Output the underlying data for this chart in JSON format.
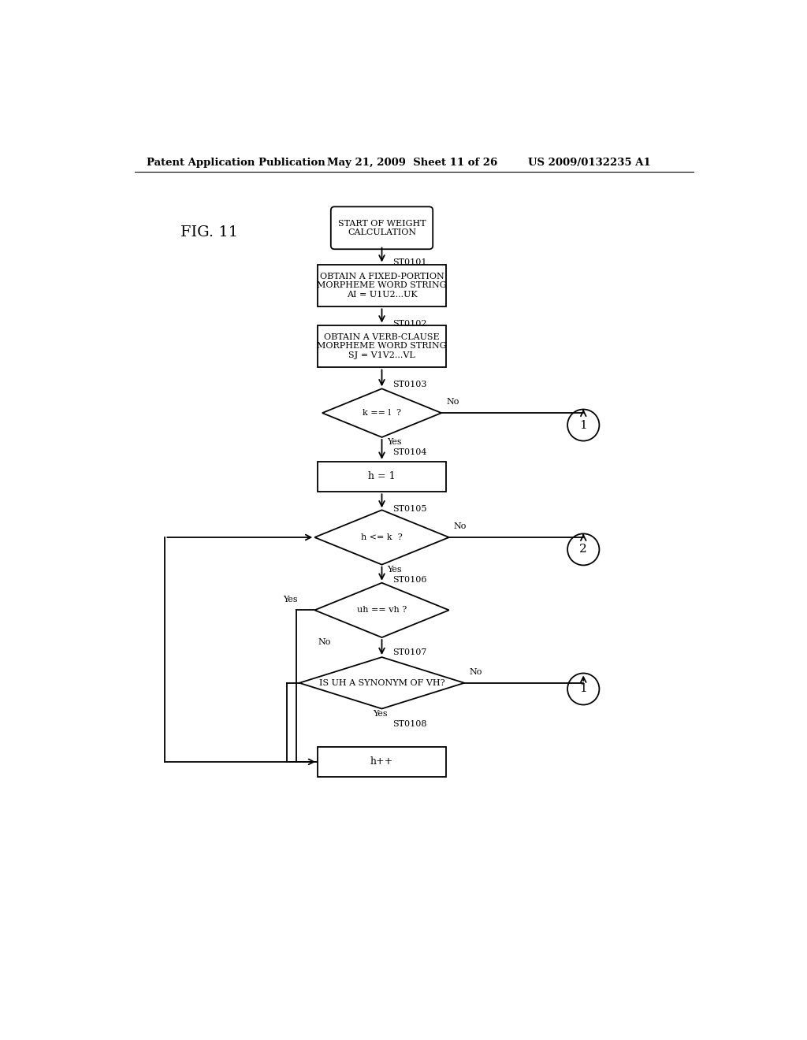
{
  "header_left": "Patent Application Publication",
  "header_mid": "May 21, 2009  Sheet 11 of 26",
  "header_right": "US 2009/0132235 A1",
  "fig_label": "FIG. 11",
  "bg_color": "#ffffff",
  "start_text": "START OF WEIGHT\nCALCULATION",
  "box1_text": "OBTAIN A FIXED-PORTION\nMORPHEME WORD STRING\nAI = U1U2...UK",
  "box2_text": "OBTAIN A VERB-CLAUSE\nMORPHEME WORD STRING\nSJ = V1V2...VL",
  "d1_text": "k == l  ?",
  "box3_text": "h = 1",
  "d2_text": "h <= k  ?",
  "d3_text": "uh == vh ?",
  "d4_text": "IS UH A SYNONYM OF VH?",
  "box4_text": "h++",
  "labels": [
    "ST0101",
    "ST0102",
    "ST0103",
    "ST0104",
    "ST0105",
    "ST0106",
    "ST0107",
    "ST0108"
  ]
}
